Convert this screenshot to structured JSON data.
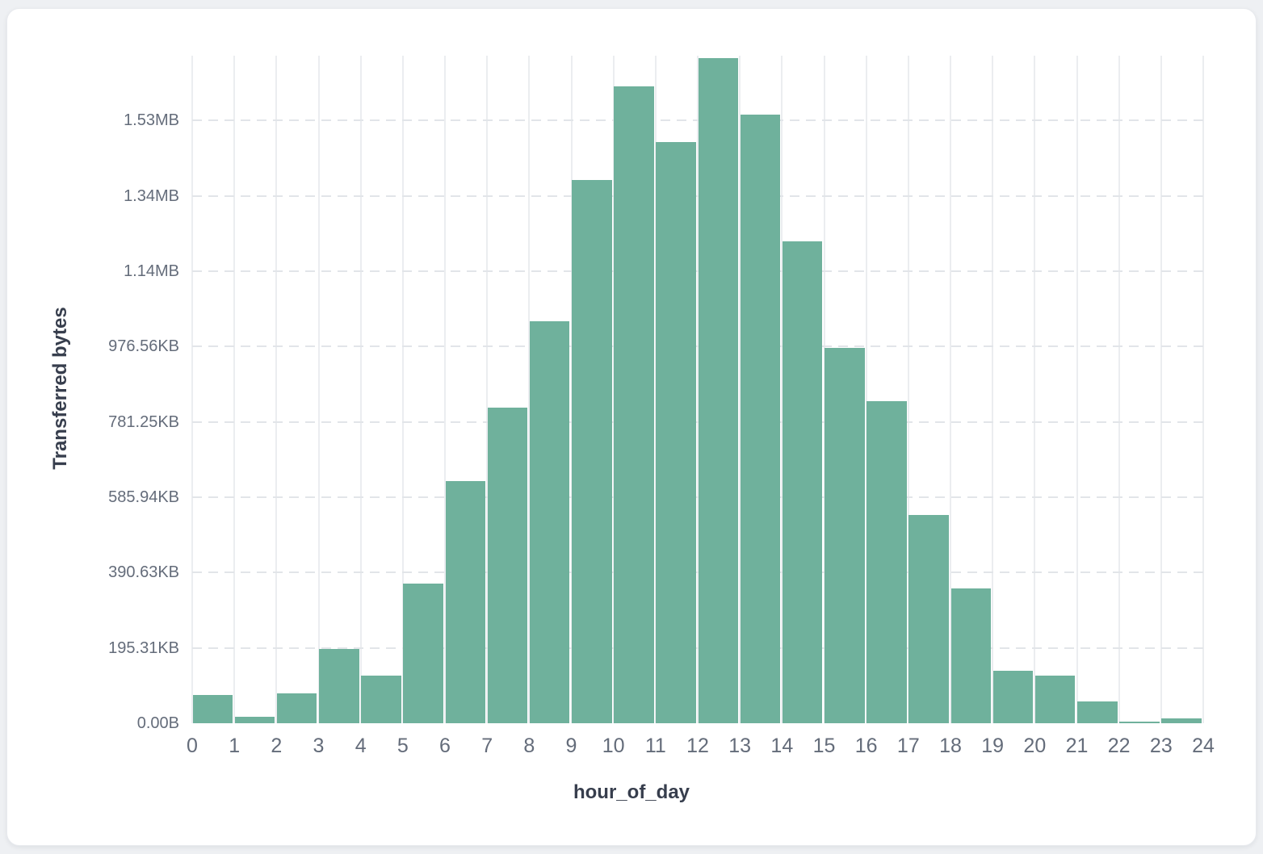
{
  "chart_data": {
    "type": "bar",
    "title": "",
    "xlabel": "hour_of_day",
    "ylabel": "Transferred bytes",
    "categories": [
      0,
      1,
      2,
      3,
      4,
      5,
      6,
      7,
      8,
      9,
      10,
      11,
      12,
      13,
      14,
      15,
      16,
      17,
      18,
      19,
      20,
      21,
      22,
      23
    ],
    "values_bytes": [
      74000,
      17000,
      79000,
      197000,
      126000,
      370000,
      642000,
      838000,
      1068000,
      1441000,
      1690000,
      1543000,
      1766000,
      1615000,
      1280000,
      996000,
      856000,
      552000,
      358000,
      140000,
      126000,
      57000,
      5000,
      12000
    ],
    "x_ticks": [
      "0",
      "1",
      "2",
      "3",
      "4",
      "5",
      "6",
      "7",
      "8",
      "9",
      "10",
      "11",
      "12",
      "13",
      "14",
      "15",
      "16",
      "17",
      "18",
      "19",
      "20",
      "21",
      "22",
      "23",
      "24"
    ],
    "y_ticks": [
      {
        "label": "0.00B",
        "bytes": 0
      },
      {
        "label": "195.31KB",
        "bytes": 200000
      },
      {
        "label": "390.63KB",
        "bytes": 400000
      },
      {
        "label": "585.94KB",
        "bytes": 600000
      },
      {
        "label": "781.25KB",
        "bytes": 800000
      },
      {
        "label": "976.56KB",
        "bytes": 1000000
      },
      {
        "label": "1.14MB",
        "bytes": 1200000
      },
      {
        "label": "1.34MB",
        "bytes": 1400000
      },
      {
        "label": "1.53MB",
        "bytes": 1600000
      }
    ],
    "ylim": [
      0,
      1772000
    ],
    "bar_color": "#6fb19c",
    "grid": {
      "vertical": "solid",
      "horizontal": "dashed"
    },
    "legend": "none"
  }
}
